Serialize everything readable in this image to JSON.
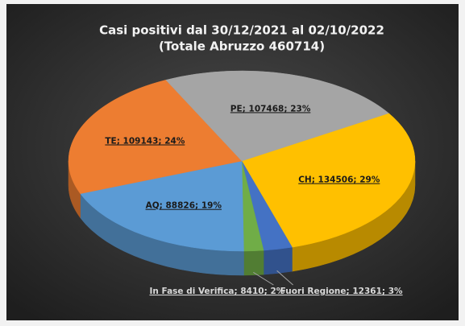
{
  "chart_data": {
    "type": "pie3d",
    "title": "Casi positivi dal 30/12/2021 al 02/10/2022",
    "subtitle": "(Totale Abruzzo 460714)",
    "categories": [
      "CH",
      "Fuori Regione",
      "In Fase di Verifica",
      "AQ",
      "TE",
      "PE"
    ],
    "values": [
      134506,
      12361,
      8410,
      88826,
      109143,
      107468
    ],
    "value_labels": [
      "CH; 134506; 29%",
      "Fuori Regione; 12361; 3%",
      "In Fase di Verifica; 8410; 2%",
      "AQ; 88826; 19%",
      "TE; 109143; 24%",
      "PE; 107468; 23%"
    ],
    "colors": [
      "#ffc000",
      "#4472c4",
      "#70ad47",
      "#5b9bd5",
      "#ed7d31",
      "#a5a5a5"
    ]
  }
}
